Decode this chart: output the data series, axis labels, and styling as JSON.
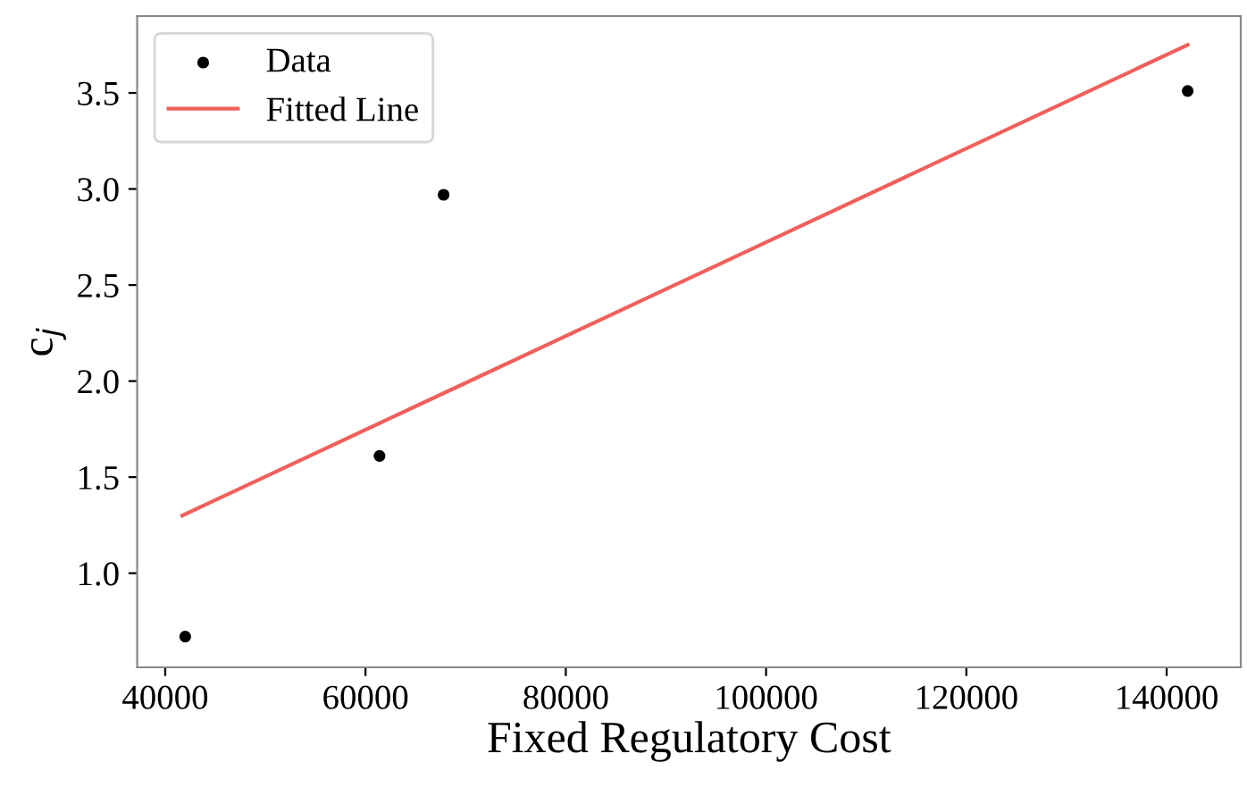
{
  "chart_data": {
    "type": "scatter",
    "xlabel": "Fixed Regulatory Cost",
    "ylabel": "c$_{j}$",
    "series": [
      {
        "name": "Data",
        "color": "#000000",
        "marker": "circle",
        "x": [
          42000,
          61400,
          67800,
          142100
        ],
        "values": [
          0.67,
          1.61,
          2.97,
          3.51
        ]
      },
      {
        "name": "Fitted Line",
        "type": "line",
        "color": "#f0605a",
        "x": [
          41700,
          142100
        ],
        "values": [
          1.3,
          3.75
        ]
      }
    ],
    "xlim": [
      37200,
      147400
    ],
    "ylim": [
      0.51,
      3.9
    ],
    "xticks": [
      40000,
      60000,
      80000,
      100000,
      120000,
      140000
    ],
    "yticks": [
      {
        "value": 1.0,
        "label": "1.0"
      },
      {
        "value": 1.5,
        "label": "1.5"
      },
      {
        "value": 2.0,
        "label": "2.0"
      },
      {
        "value": 2.5,
        "label": "2.5"
      },
      {
        "value": 3.0,
        "label": "3.0"
      },
      {
        "value": 3.5,
        "label": "3.5"
      }
    ],
    "grid": false,
    "legend": "top left"
  }
}
